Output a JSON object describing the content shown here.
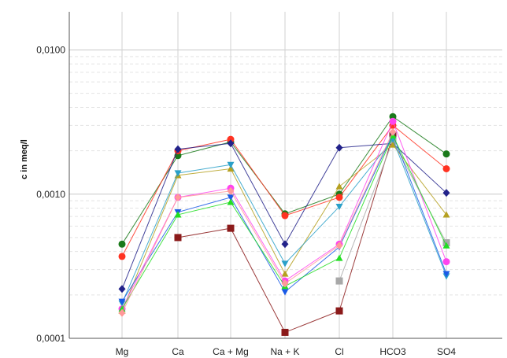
{
  "chart_data": {
    "type": "line",
    "title": "",
    "ylabel": "c in meq/l",
    "xlabel": "",
    "y_scale": "log",
    "ylim": [
      0.0001,
      0.0184
    ],
    "y_ticks": [
      {
        "value": 0.0001,
        "label": "0,0001"
      },
      {
        "value": 0.001,
        "label": "0,0010"
      },
      {
        "value": 0.01,
        "label": "0,0100"
      }
    ],
    "categories": [
      "Mg",
      "Ca",
      "Ca + Mg",
      "Na + K",
      "Cl",
      "HCO3",
      "SO4"
    ],
    "grid": true,
    "legend": "none",
    "series": [
      {
        "color": "#1a7a1a",
        "marker": "circle",
        "values": [
          0.00045,
          0.00185,
          0.0023,
          0.00073,
          0.001,
          0.00345,
          0.0019
        ]
      },
      {
        "color": "#ff3322",
        "marker": "circle",
        "values": [
          0.00037,
          0.002,
          0.0024,
          0.00071,
          0.00095,
          0.003,
          0.0015
        ]
      },
      {
        "color": "#22228a",
        "marker": "diamond",
        "values": [
          0.00022,
          0.00205,
          0.00225,
          0.00045,
          0.0021,
          0.00225,
          0.00102
        ]
      },
      {
        "color": "#8b1a1a",
        "marker": "square",
        "values": [
          null,
          0.0005,
          0.00058,
          0.00011,
          0.000155,
          0.00255,
          null
        ]
      },
      {
        "color": "#a8a8a8",
        "marker": "square",
        "values": [
          null,
          null,
          null,
          null,
          0.00025,
          0.00235,
          0.00046
        ]
      },
      {
        "color": "#b5a020",
        "marker": "triangle-up",
        "values": [
          0.000155,
          0.00135,
          0.0015,
          0.00028,
          0.00113,
          0.0022,
          0.00072
        ]
      },
      {
        "color": "#2aa0c8",
        "marker": "triangle-down",
        "values": [
          0.000175,
          0.0014,
          0.0016,
          0.00033,
          0.00082,
          0.0024,
          0.00027
        ]
      },
      {
        "color": "#1a5ae6",
        "marker": "triangle-down",
        "values": [
          0.00018,
          0.00075,
          0.00095,
          0.00021,
          0.00043,
          0.0026,
          0.00028
        ]
      },
      {
        "color": "#ff44ee",
        "marker": "circle",
        "values": [
          0.00016,
          0.00095,
          0.0011,
          0.00025,
          0.00045,
          0.0032,
          0.00034
        ]
      },
      {
        "color": "#22dd22",
        "marker": "triangle-up",
        "values": [
          0.00016,
          0.00072,
          0.00088,
          0.00023,
          0.00036,
          0.00255,
          0.00044
        ]
      },
      {
        "color": "#ff9999",
        "marker": "diamond",
        "values": [
          0.00015,
          0.00095,
          0.00105,
          0.00024,
          0.00044,
          0.0027,
          null
        ]
      }
    ]
  }
}
